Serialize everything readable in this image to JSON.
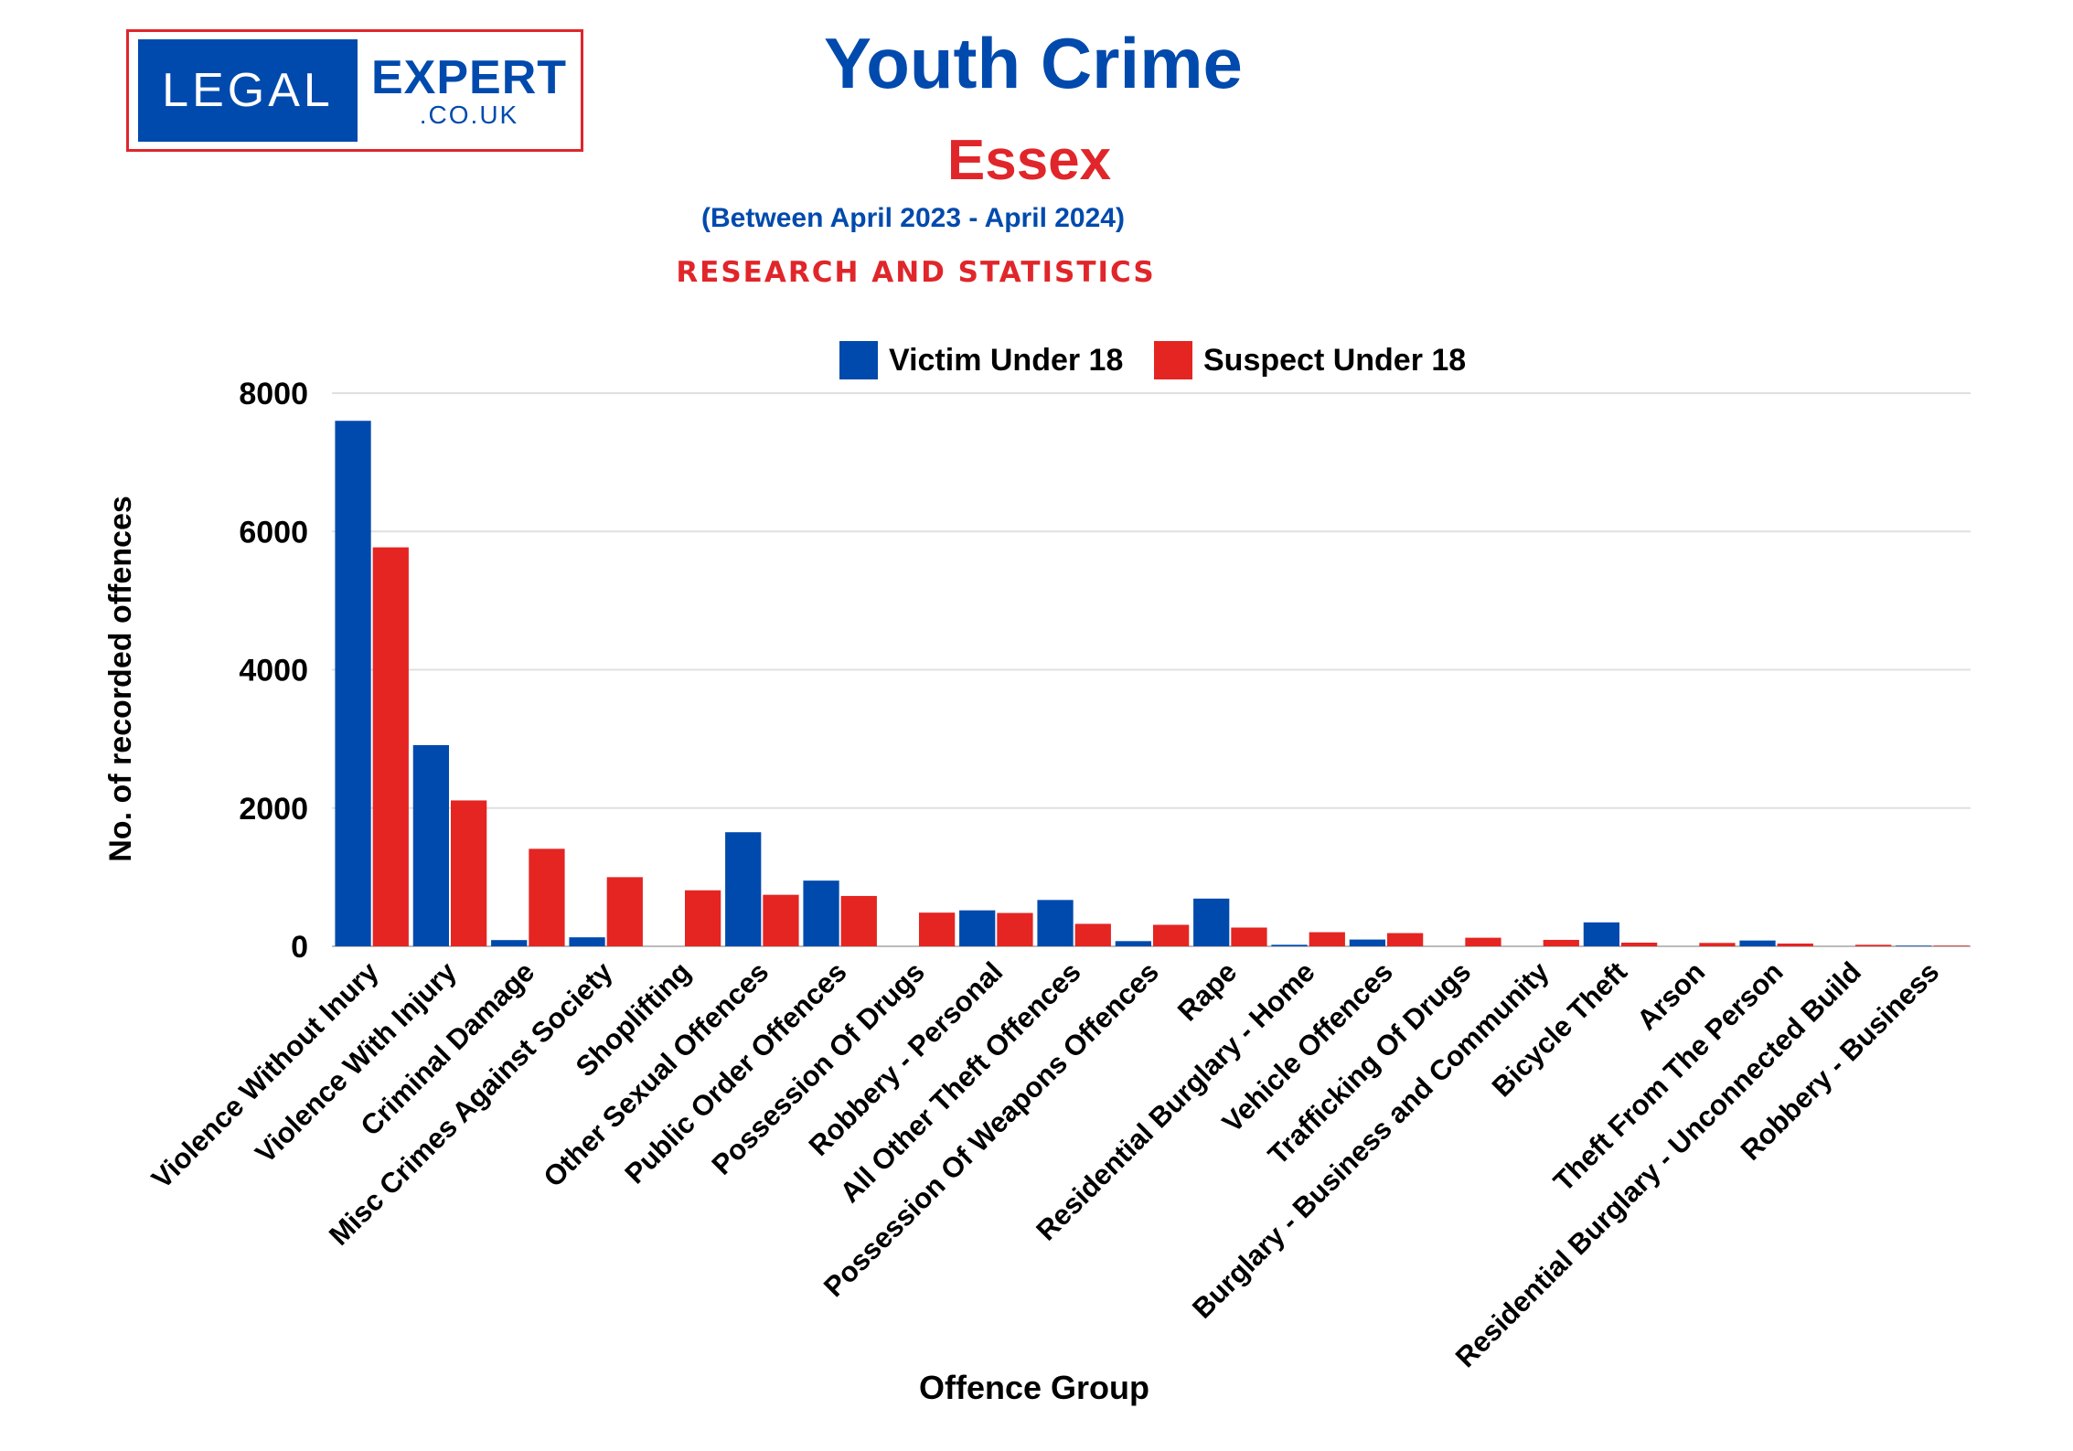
{
  "logo": {
    "left": "LEGAL",
    "right": "EXPERT",
    "domain": ".CO.UK"
  },
  "header": {
    "title": "Youth Crime",
    "subtitle": "Essex",
    "period": "(Between April 2023 - April 2024)",
    "tagline": "RESEARCH AND STATISTICS"
  },
  "chart_data": {
    "type": "bar",
    "xlabel": "Offence Group",
    "ylabel": "No. of recorded offences",
    "ylim": [
      0,
      8000
    ],
    "yticks": [
      0,
      2000,
      4000,
      6000,
      8000
    ],
    "grid": true,
    "legend_position": "top",
    "categories": [
      "Violence Without Inury",
      "Violence With Injury",
      "Criminal Damage",
      "Misc Crimes Against Society",
      "Shoplifting",
      "Other Sexual Offences",
      "Public Order Offences",
      "Possession Of Drugs",
      "Robbery - Personal",
      "All Other Theft Offences",
      "Possession Of Weapons Offences",
      "Rape",
      "Residential Burglary - Home",
      "Vehicle Offences",
      "Trafficking Of Drugs",
      "Burglary - Business and Community",
      "Bicycle Theft",
      "Arson",
      "Theft From The Person",
      "Residential Burglary - Unconnected Build",
      "Robbery - Business"
    ],
    "series": [
      {
        "name": "Victim Under 18",
        "color": "#004aad",
        "values": [
          7600,
          2910,
          90,
          130,
          0,
          1650,
          950,
          0,
          520,
          670,
          75,
          690,
          22,
          98,
          0,
          0,
          346,
          0,
          84,
          0,
          9
        ]
      },
      {
        "name": "Suspect Under 18",
        "color": "#e42522",
        "values": [
          5770,
          2110,
          1410,
          1000,
          810,
          745,
          728,
          487,
          482,
          325,
          311,
          271,
          204,
          191,
          124,
          93,
          53,
          49,
          40,
          22,
          9
        ]
      }
    ]
  }
}
